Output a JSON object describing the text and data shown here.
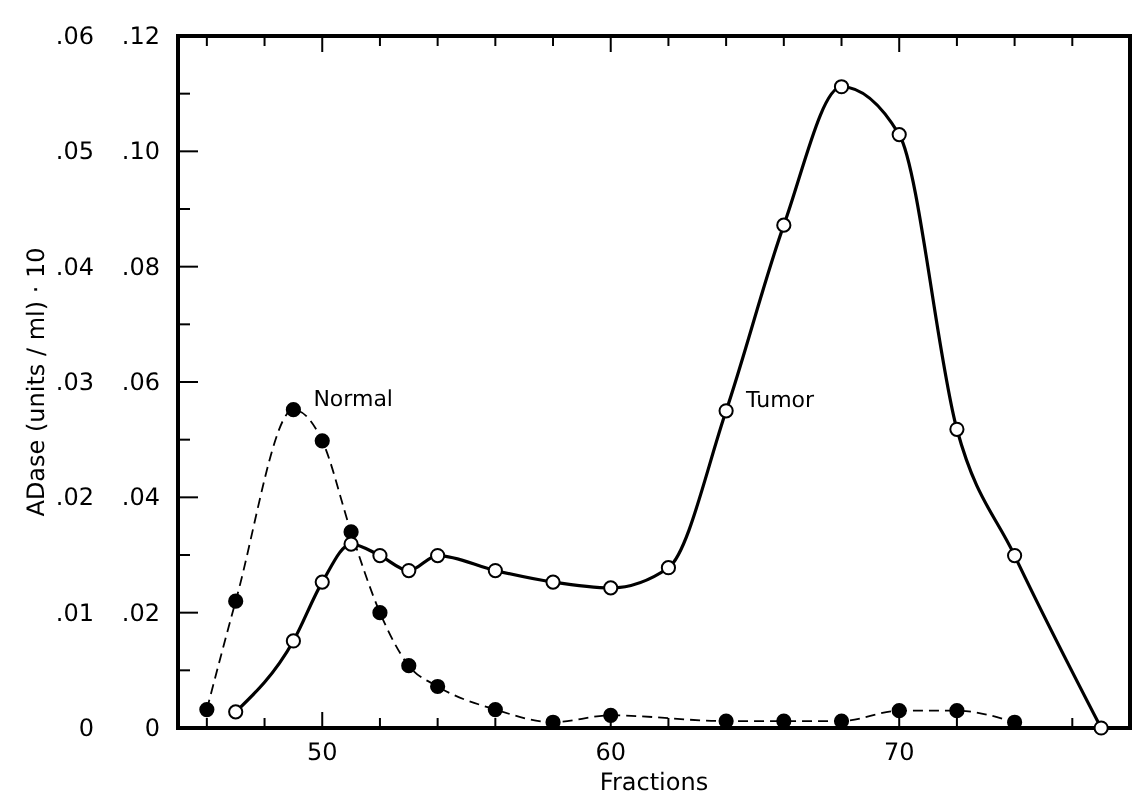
{
  "chart_data": {
    "type": "line",
    "xlabel": "Fractions",
    "ylabel": "ADase (units / ml) · 10",
    "xlim": [
      45,
      78
    ],
    "xticks": [
      {
        "value": 46,
        "label": null
      },
      {
        "value": 48,
        "label": null
      },
      50,
      {
        "value": 52,
        "label": null
      },
      {
        "value": 54,
        "label": null
      },
      {
        "value": 56,
        "label": null
      },
      {
        "value": 58,
        "label": null
      },
      60,
      {
        "value": 62,
        "label": null
      },
      {
        "value": 64,
        "label": null
      },
      {
        "value": 66,
        "label": null
      },
      {
        "value": 68,
        "label": null
      },
      70,
      {
        "value": 72,
        "label": null
      },
      {
        "value": 74,
        "label": null
      },
      {
        "value": 76,
        "label": null
      }
    ],
    "y2lim": [
      0,
      0.12
    ],
    "y2ticks": [
      0,
      {
        "value": 0.01,
        "label": null
      },
      {
        "value": 0.02,
        "label": ".02"
      },
      {
        "value": 0.03,
        "label": null
      },
      {
        "value": 0.04,
        "label": ".04"
      },
      {
        "value": 0.05,
        "label": null
      },
      {
        "value": 0.06,
        "label": ".06"
      },
      {
        "value": 0.07,
        "label": null
      },
      {
        "value": 0.08,
        "label": ".08"
      },
      {
        "value": 0.09,
        "label": null
      },
      {
        "value": 0.1,
        "label": ".10"
      },
      {
        "value": 0.11,
        "label": null
      },
      {
        "value": 0.12,
        "label": ".12"
      }
    ],
    "ylim": [
      0,
      0.06
    ],
    "yticks": [
      0,
      {
        "value": 0.01,
        "label": ".01"
      },
      {
        "value": 0.02,
        "label": ".02"
      },
      {
        "value": 0.03,
        "label": ".03"
      },
      {
        "value": 0.04,
        "label": ".04"
      },
      {
        "value": 0.05,
        "label": ".05"
      },
      {
        "value": 0.06,
        "label": ".06"
      }
    ],
    "grid": false,
    "marker": "circle",
    "series": [
      {
        "name": "Normal",
        "color": "#000000",
        "line_style": "dashed",
        "x": [
          46,
          47,
          49,
          50,
          51,
          52,
          53,
          54,
          56,
          58,
          60,
          64,
          66,
          68,
          70,
          72,
          74
        ],
        "values": [
          0.0016,
          0.011,
          0.0276,
          0.0249,
          0.017,
          0.01,
          0.0054,
          0.0036,
          0.0016,
          0.0005,
          0.0011,
          0.0006,
          0.0006,
          0.0006,
          0.0015,
          0.0015,
          0.0005
        ]
      },
      {
        "name": "Tumor",
        "color": "#000000",
        "axis": "y2",
        "line_style": "solid",
        "x": [
          47,
          49,
          50,
          51,
          52,
          53,
          54,
          56,
          58,
          60,
          62,
          64,
          66,
          68,
          70,
          72,
          74,
          77
        ],
        "values": [
          0.0028,
          0.0151,
          0.0253,
          0.0319,
          0.0299,
          0.0273,
          0.0299,
          0.0273,
          0.0253,
          0.0243,
          0.0278,
          0.055,
          0.0872,
          0.1112,
          0.1029,
          0.0518,
          0.0299,
          0
        ]
      }
    ]
  }
}
